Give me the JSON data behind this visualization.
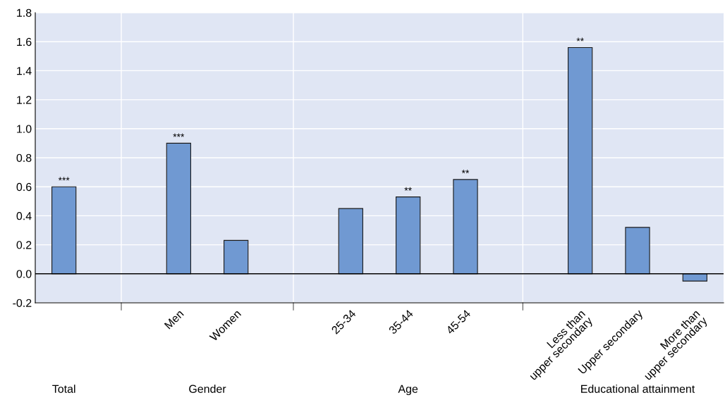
{
  "chart_data": {
    "type": "bar",
    "categories": [
      null,
      null,
      "Men",
      "Women",
      null,
      "25-34",
      "35-44",
      "45-54",
      null,
      "Less than\nupper secondary",
      "Upper secondary",
      "More than\nupper secondary"
    ],
    "values": [
      0.6,
      null,
      0.9,
      0.23,
      null,
      0.45,
      0.53,
      0.65,
      null,
      1.56,
      0.32,
      -0.05
    ],
    "value_labels": [
      "***",
      null,
      "***",
      null,
      null,
      null,
      "**",
      "**",
      null,
      "**",
      null,
      null
    ],
    "color": "#7099d2",
    "annotations": [
      "Total",
      "Gender",
      "Age",
      "Educational attainment"
    ],
    "ylim": [
      -0.2,
      1.8
    ],
    "yticks": [
      {
        "value": -0.2,
        "label": "-0.2"
      },
      {
        "value": 0.0,
        "label": "0.0"
      },
      {
        "value": 0.2,
        "label": "0.2"
      },
      {
        "value": 0.4,
        "label": "0.4"
      },
      {
        "value": 0.6,
        "label": "0.6"
      },
      {
        "value": 0.8,
        "label": "0.8"
      },
      {
        "value": 1.0,
        "label": "1.0"
      },
      {
        "value": 1.2,
        "label": "1.2"
      },
      {
        "value": 1.4,
        "label": "1.4"
      },
      {
        "value": 1.6,
        "label": "1.6"
      },
      {
        "value": 1.8,
        "label": "1.8"
      }
    ],
    "grid": true
  }
}
